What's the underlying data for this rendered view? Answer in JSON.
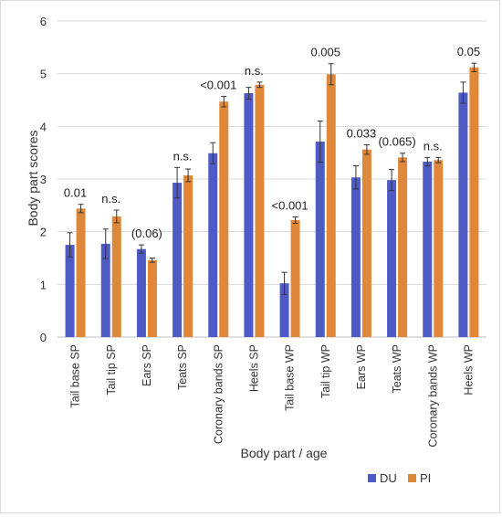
{
  "chart_data": {
    "type": "bar",
    "title": "",
    "xlabel": "Body part / age",
    "ylabel": "Body part scores",
    "ylim": [
      0,
      6
    ],
    "yticks": [
      0,
      1,
      2,
      3,
      4,
      5,
      6
    ],
    "grid": true,
    "legend_position": "bottom-right",
    "categories": [
      "Tail base SP",
      "Tail tip SP",
      "Ears SP",
      "Teats SP",
      "Coronary bands SP",
      "Heels SP",
      "Tail base WP",
      "Tail tip WP",
      "Ears WP",
      "Teats WP",
      "Coronary bands WP",
      "Heels WP"
    ],
    "series": [
      {
        "name": "DU",
        "color": "#4f5bc4",
        "values": [
          1.75,
          1.77,
          1.67,
          2.93,
          3.49,
          4.63,
          1.02,
          3.71,
          3.03,
          2.98,
          3.33,
          4.64
        ],
        "errors": [
          0.23,
          0.28,
          0.08,
          0.29,
          0.2,
          0.11,
          0.21,
          0.39,
          0.22,
          0.2,
          0.08,
          0.2
        ]
      },
      {
        "name": "PI",
        "color": "#e0883a",
        "values": [
          2.44,
          2.29,
          1.46,
          3.07,
          4.47,
          4.79,
          2.22,
          4.99,
          3.56,
          3.41,
          3.36,
          5.12
        ],
        "errors": [
          0.08,
          0.12,
          0.04,
          0.12,
          0.1,
          0.05,
          0.06,
          0.2,
          0.09,
          0.08,
          0.05,
          0.08
        ]
      }
    ],
    "annotations": [
      "0.01",
      "n.s.",
      "(0.06)",
      "n.s.",
      "<0.001",
      "n.s.",
      "<0.001",
      "0.005",
      "0.033",
      "(0.065)",
      "n.s.",
      "0.05"
    ]
  }
}
